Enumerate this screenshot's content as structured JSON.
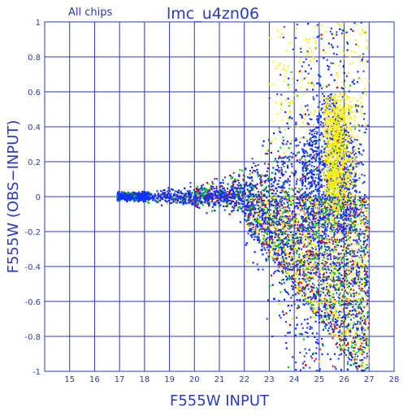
{
  "chart_data": {
    "type": "scatter",
    "title": "lmc_u4zn06",
    "subtitle": "All chips",
    "xlabel": "F555W INPUT",
    "ylabel": "F555W (OBS−INPUT)",
    "xlim": [
      14,
      28
    ],
    "ylim": [
      -1,
      1
    ],
    "x_ticks": [
      "15",
      "16",
      "17",
      "18",
      "19",
      "20",
      "21",
      "22",
      "23",
      "24",
      "25",
      "26",
      "27",
      "28"
    ],
    "y_ticks": [
      "-1",
      "-0.8",
      "-0.6",
      "-0.4",
      "-0.2",
      "0",
      "0.2",
      "0.4",
      "0.6",
      "0.8",
      "1"
    ],
    "x_tick_values": [
      15,
      16,
      17,
      18,
      19,
      20,
      21,
      22,
      23,
      24,
      25,
      26,
      27,
      28
    ],
    "y_tick_values": [
      -1,
      -0.8,
      -0.6,
      -0.4,
      -0.2,
      0,
      0.2,
      0.4,
      0.6,
      0.8,
      1
    ],
    "grid": true,
    "colors": {
      "axis": "#2a3ab8",
      "grid": "#2a3ab8",
      "blue": "#1030ff",
      "green": "#00d000",
      "red": "#e00000",
      "yellow": "#ffee00"
    }
  }
}
